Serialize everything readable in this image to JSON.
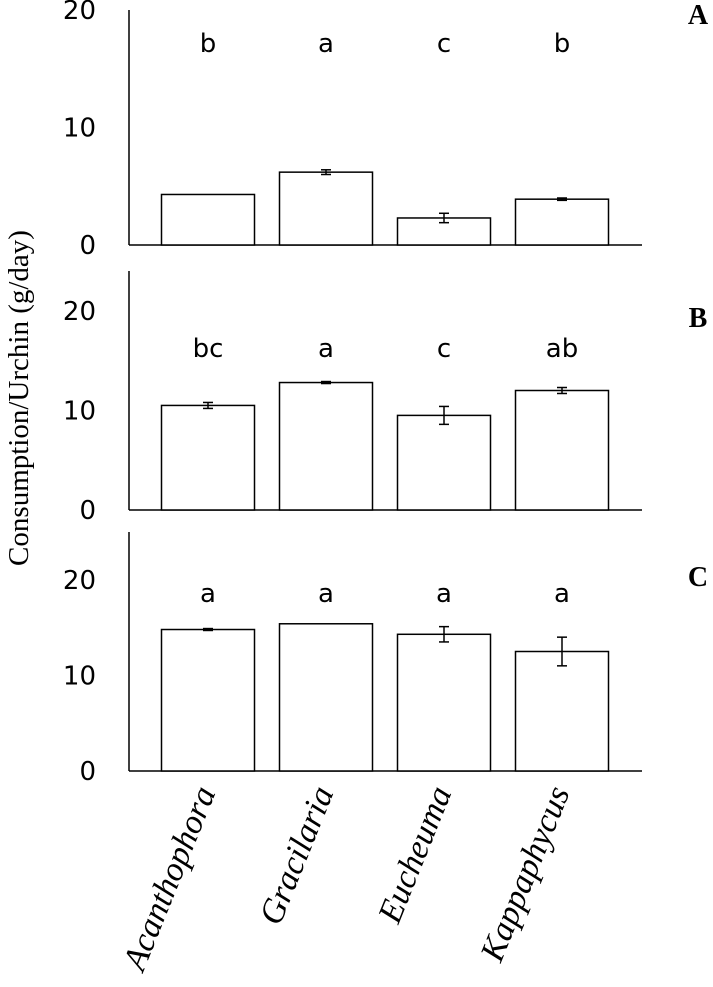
{
  "ylabel": "Consumption/Urchin (g/day)",
  "chart_data": [
    {
      "type": "bar",
      "panel": "A",
      "categories": [
        "Acanthophora",
        "Gracilaria",
        "Eucheuma",
        "Kappaphycus"
      ],
      "values": [
        4.3,
        6.2,
        2.3,
        3.9
      ],
      "errors": [
        0.0,
        0.2,
        0.4,
        0.1
      ],
      "letters": [
        "b",
        "a",
        "c",
        "b"
      ],
      "yticks": [
        0,
        10,
        20
      ],
      "ylim": [
        0,
        20
      ],
      "xlabel": "",
      "ylabel": "Consumption/Urchin (g/day)"
    },
    {
      "type": "bar",
      "panel": "B",
      "categories": [
        "Acanthophora",
        "Gracilaria",
        "Eucheuma",
        "Kappaphycus"
      ],
      "values": [
        10.5,
        12.8,
        9.5,
        12.0
      ],
      "errors": [
        0.3,
        0.1,
        0.9,
        0.3
      ],
      "letters": [
        "bc",
        "a",
        "c",
        "ab"
      ],
      "yticks": [
        0,
        10,
        20
      ],
      "ylim": [
        0,
        24
      ],
      "xlabel": "",
      "ylabel": "Consumption/Urchin (g/day)"
    },
    {
      "type": "bar",
      "panel": "C",
      "categories": [
        "Acanthophora",
        "Gracilaria",
        "Eucheuma",
        "Kappaphycus"
      ],
      "values": [
        14.8,
        15.4,
        14.3,
        12.5
      ],
      "errors": [
        0.1,
        0.0,
        0.8,
        1.5
      ],
      "letters": [
        "a",
        "a",
        "a",
        "a"
      ],
      "yticks": [
        0,
        10,
        20
      ],
      "ylim": [
        0,
        25
      ],
      "xlabel": "",
      "ylabel": "Consumption/Urchin (g/day)"
    }
  ]
}
